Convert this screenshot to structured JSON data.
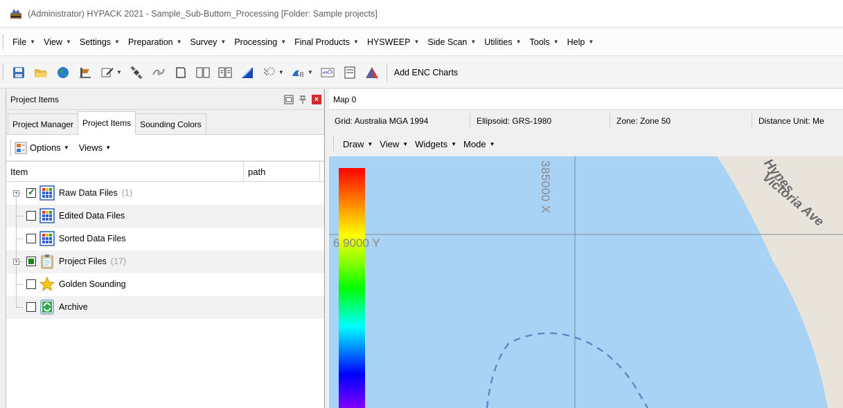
{
  "window": {
    "title": "(Administrator) HYPACK 2021 - Sample_Sub-Buttom_Processing  [Folder: Sample projects]"
  },
  "menubar": {
    "items": [
      "File",
      "View",
      "Settings",
      "Preparation",
      "Survey",
      "Processing",
      "Final Products",
      "HYSWEEP",
      "Side Scan",
      "Utilities",
      "Tools",
      "Help"
    ]
  },
  "toolbar": {
    "icons": [
      "save-icon",
      "open-folder-icon",
      "globe-icon",
      "boat-icon",
      "edit-line-icon",
      "satellite-icon",
      "matrix-icon",
      "border-icon",
      "book-icon",
      "dual-book-icon",
      "wave-icon",
      "sounding-icon",
      "tide-icon",
      "chart-icon",
      "window-icon",
      "tin-model-icon"
    ],
    "add_enc_label": "Add ENC Charts"
  },
  "left_panel": {
    "title": "Project Items",
    "tabs": [
      "Project Manager",
      "Project Items",
      "Sounding Colors"
    ],
    "active_tab": "Project Items",
    "options_label": "Options",
    "views_label": "Views",
    "columns": [
      "Item",
      "path"
    ],
    "rows": [
      {
        "label": "Raw Data Files",
        "count": "(1)",
        "checked": "checked",
        "expandable": true,
        "icon": "data-files-icon"
      },
      {
        "label": "Edited Data Files",
        "count": "",
        "checked": "unchecked",
        "expandable": false,
        "icon": "data-files-icon"
      },
      {
        "label": "Sorted Data Files",
        "count": "",
        "checked": "unchecked",
        "expandable": false,
        "icon": "data-files-icon"
      },
      {
        "label": "Project Files",
        "count": "(17)",
        "checked": "partial",
        "expandable": true,
        "icon": "clipboard-icon"
      },
      {
        "label": "Golden Sounding",
        "count": "",
        "checked": "unchecked",
        "expandable": false,
        "icon": "star-icon"
      },
      {
        "label": "Archive",
        "count": "",
        "checked": "unchecked",
        "expandable": false,
        "icon": "archive-refresh-icon"
      }
    ]
  },
  "map_panel": {
    "title": "Map 0",
    "grid": "Grid: Australia MGA 1994",
    "ellipsoid": "Ellipsoid: GRS-1980",
    "zone": "Zone: Zone 50",
    "distance_unit": "Distance Unit: Me",
    "menu": [
      "Draw",
      "View",
      "Widgets",
      "Mode"
    ],
    "x_coord_label": "385000 X",
    "y_coord_label": "6 9000 Y",
    "street_1": "Hynes",
    "street_2": "Victoria Ave",
    "colors": {
      "water": "#a9d3f5",
      "land": "#e8e4dc",
      "grid_line": "#7a8a96"
    }
  }
}
